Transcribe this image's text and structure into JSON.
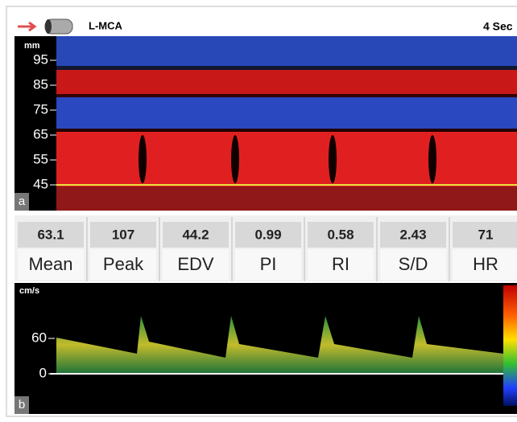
{
  "header": {
    "label": "L-MCA",
    "duration": "4 Sec"
  },
  "mmode": {
    "unit": "mm",
    "depths": [
      95,
      85,
      75,
      65,
      55,
      45
    ],
    "panel": "a"
  },
  "metrics": [
    {
      "value": 63.1,
      "name": "Mean"
    },
    {
      "value": 107,
      "name": "Peak"
    },
    {
      "value": 44.2,
      "name": "EDV"
    },
    {
      "value": 0.99,
      "name": "PI"
    },
    {
      "value": 0.58,
      "name": "RI"
    },
    {
      "value": 2.43,
      "name": "S/D"
    },
    {
      "value": 71,
      "name": "HR"
    }
  ],
  "spectrum": {
    "unit": "cm/s",
    "ticks": [
      60,
      0
    ],
    "panel": "b"
  }
}
